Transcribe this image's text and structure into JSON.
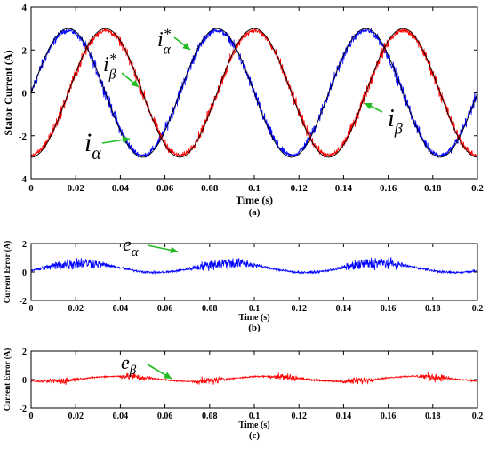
{
  "chart_data": [
    {
      "type": "line",
      "panel_label": "(a)",
      "xlabel": "Time (s)",
      "ylabel": "Stator Current (A)",
      "xlim": [
        0,
        0.2
      ],
      "ylim": [
        -4,
        4
      ],
      "x_ticks": [
        "0",
        "0.02",
        "0.04",
        "0.06",
        "0.08",
        "0.1",
        "0.12",
        "0.14",
        "0.16",
        "0.18",
        "0.2"
      ],
      "y_ticks": [
        "4",
        "2",
        "0",
        "-2",
        "-4"
      ],
      "grid": false,
      "series": [
        {
          "name": "i_alpha*",
          "kind": "reference",
          "amplitude": 3.0,
          "frequency_hz": 15.0,
          "phase_deg": 0,
          "x": [
            0,
            0.0167,
            0.0333,
            0.05,
            0.0667,
            0.0833,
            0.1,
            0.1167,
            0.1333,
            0.15,
            0.1667,
            0.1833,
            0.2
          ],
          "y": [
            0,
            3.0,
            0,
            -3.0,
            0,
            3.0,
            0,
            -3.0,
            0,
            3.0,
            0,
            -3.0,
            0
          ]
        },
        {
          "name": "i_beta*",
          "kind": "reference",
          "amplitude": 3.0,
          "frequency_hz": 15.0,
          "phase_deg": -90,
          "x": [
            0,
            0.0167,
            0.0333,
            0.05,
            0.0667,
            0.0833,
            0.1,
            0.1167,
            0.1333,
            0.15,
            0.1667,
            0.1833,
            0.2
          ],
          "y": [
            -3.0,
            0,
            3.0,
            0,
            -3.0,
            0,
            3.0,
            0,
            -3.0,
            0,
            3.0,
            0,
            -3.0
          ]
        },
        {
          "name": "i_alpha",
          "kind": "measured",
          "color": "#0000ff",
          "amplitude": 3.0,
          "frequency_hz": 15.0,
          "phase_deg": 0,
          "noise_band": 0.5
        },
        {
          "name": "i_beta",
          "kind": "measured",
          "color": "#ff0000",
          "amplitude": 3.0,
          "frequency_hz": 15.0,
          "phase_deg": -90,
          "noise_band": 0.5
        }
      ],
      "annotations": [
        {
          "text": "i",
          "sub": "α",
          "sup": "*"
        },
        {
          "text": "i",
          "sub": "β",
          "sup": "*"
        },
        {
          "text": "i",
          "sub": "α",
          "sup": ""
        },
        {
          "text": "i",
          "sub": "β",
          "sup": ""
        }
      ]
    },
    {
      "type": "line",
      "panel_label": "(b)",
      "xlabel": "Time (s)",
      "ylabel": "Current Error (A)",
      "xlim": [
        0,
        0.2
      ],
      "ylim": [
        -2,
        2
      ],
      "x_ticks": [
        "0",
        "0.02",
        "0.04",
        "0.06",
        "0.08",
        "0.1",
        "0.12",
        "0.14",
        "0.16",
        "0.18",
        "0.2"
      ],
      "y_ticks": [
        "2",
        "0",
        "-2"
      ],
      "series": [
        {
          "name": "e_alpha",
          "color": "#0000ff",
          "mean": 0.3,
          "amplitude": 0.6,
          "frequency_hz": 15.0
        }
      ],
      "annotations": [
        {
          "text": "e",
          "sub": "α"
        }
      ]
    },
    {
      "type": "line",
      "panel_label": "(c)",
      "xlabel": "Time (s)",
      "ylabel": "Current Error (A)",
      "xlim": [
        0,
        0.2
      ],
      "ylim": [
        -2,
        2
      ],
      "x_ticks": [
        "0",
        "0.02",
        "0.04",
        "0.06",
        "0.08",
        "0.1",
        "0.12",
        "0.14",
        "0.16",
        "0.18",
        "0.2"
      ],
      "y_ticks": [
        "2",
        "0",
        "-2"
      ],
      "series": [
        {
          "name": "e_beta",
          "color": "#ff0000",
          "mean": 0.05,
          "amplitude": 0.3,
          "frequency_hz": 15.0
        }
      ],
      "annotations": [
        {
          "text": "e",
          "sub": "β"
        }
      ]
    }
  ],
  "colors": {
    "reference": "#000000",
    "alpha": "#0000ff",
    "beta": "#ff0000",
    "arrow": "#22bb22"
  }
}
